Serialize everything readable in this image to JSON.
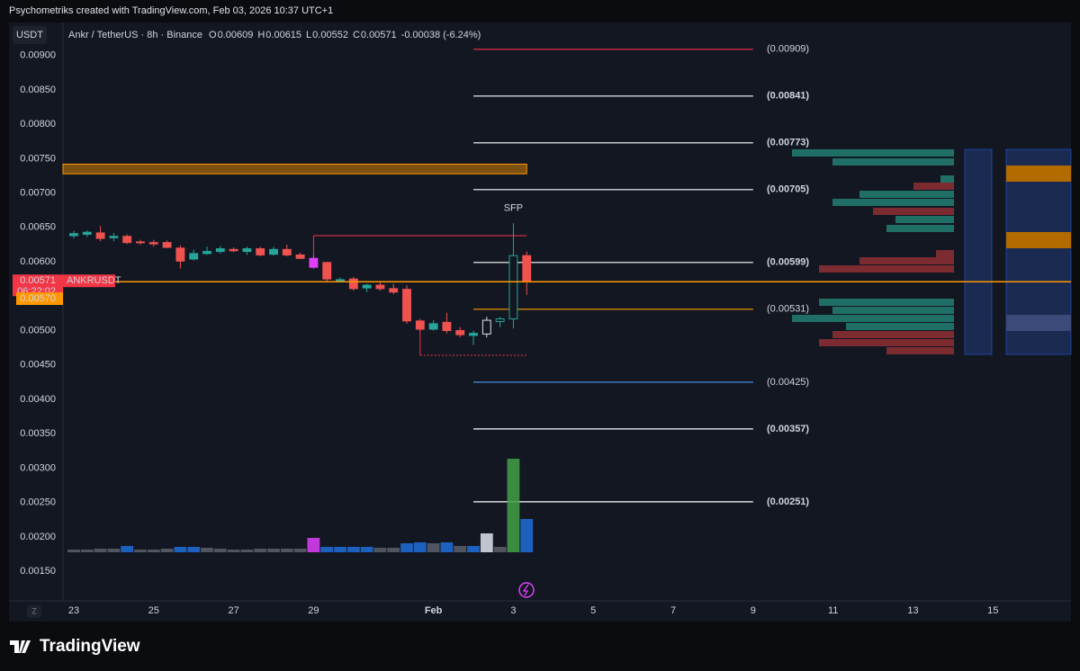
{
  "header": {
    "attribution": "Psychometriks created with TradingView.com, Feb 03, 2026 10:37 UTC+1"
  },
  "footer": {
    "logo": "TradingView"
  },
  "chart_data": {
    "type": "candlestick",
    "quote_button": "USDT",
    "symbol": "Ankr / TetherUS · 8h · Binance",
    "legend": [
      {
        "label": "O",
        "value": "0.00609"
      },
      {
        "label": "H",
        "value": "0.00615"
      },
      {
        "label": "L",
        "value": "0.00552"
      },
      {
        "label": "C",
        "value": "0.00571"
      }
    ],
    "change": "-0.00038 (-6.24%)",
    "x": [
      0,
      1,
      2,
      3,
      4,
      5,
      6,
      7,
      8,
      9,
      10,
      11,
      12,
      13,
      14,
      15,
      16,
      17,
      18,
      19,
      20,
      21,
      22,
      23,
      24,
      25,
      26,
      27,
      28,
      29,
      30,
      31,
      32,
      33,
      34
    ],
    "open": [
      0.00638,
      0.0064,
      0.00642,
      0.00635,
      0.00637,
      0.00629,
      0.00628,
      0.00628,
      0.0062,
      0.00604,
      0.00612,
      0.00615,
      0.00618,
      0.00615,
      0.00619,
      0.00611,
      0.00618,
      0.0061,
      0.00605,
      0.00599,
      0.00574,
      0.00575,
      0.00562,
      0.00566,
      0.00561,
      0.0056,
      0.00514,
      0.00502,
      0.00512,
      0.005,
      0.00493,
      0.00495,
      0.00513,
      0.00517,
      0.00609
    ],
    "high": [
      0.00645,
      0.00646,
      0.00652,
      0.00642,
      0.0064,
      0.00632,
      0.00632,
      0.00631,
      0.00624,
      0.00618,
      0.00622,
      0.00623,
      0.00621,
      0.00622,
      0.00622,
      0.00622,
      0.00625,
      0.00613,
      0.0061,
      0.006,
      0.00577,
      0.00578,
      0.00568,
      0.00571,
      0.00568,
      0.00566,
      0.00517,
      0.00515,
      0.00526,
      0.00505,
      0.005,
      0.0052,
      0.0052,
      0.00656,
      0.00615
    ],
    "low": [
      0.00634,
      0.00636,
      0.0063,
      0.0063,
      0.00626,
      0.00625,
      0.00622,
      0.0062,
      0.0059,
      0.00602,
      0.0061,
      0.00612,
      0.00614,
      0.0061,
      0.00608,
      0.00609,
      0.00608,
      0.00604,
      0.0059,
      0.0057,
      0.0057,
      0.00558,
      0.00556,
      0.00558,
      0.00553,
      0.0051,
      0.00499,
      0.005,
      0.00496,
      0.0049,
      0.00479,
      0.0049,
      0.00505,
      0.00503,
      0.00552
    ],
    "close": [
      0.00641,
      0.00643,
      0.00634,
      0.00637,
      0.00628,
      0.00628,
      0.00626,
      0.00621,
      0.00601,
      0.00612,
      0.00615,
      0.00619,
      0.00616,
      0.00619,
      0.0061,
      0.00618,
      0.0061,
      0.00605,
      0.00592,
      0.00575,
      0.00573,
      0.00561,
      0.00566,
      0.00561,
      0.00556,
      0.00514,
      0.00502,
      0.0051,
      0.005,
      0.00494,
      0.00496,
      0.00515,
      0.00517,
      0.00609,
      0.00571
    ],
    "candle_colors": [
      "#26a69a",
      "#26a69a",
      "#ef5350",
      "#26a69a",
      "#ef5350",
      "#ef5350",
      "#ef5350",
      "#ef5350",
      "#ef5350",
      "#26a69a",
      "#26a69a",
      "#26a69a",
      "#ef5350",
      "#26a69a",
      "#ef5350",
      "#26a69a",
      "#ef5350",
      "#ef5350",
      "#e040fb",
      "#ef5350",
      "#26a69a",
      "#ef5350",
      "#26a69a",
      "#ef5350",
      "#ef5350",
      "#ef5350",
      "#ef5350",
      "#26a69a",
      "#ef5350",
      "#ef5350",
      "#26a69a",
      "#e0e3eb",
      "#26a69a",
      "#26a69a",
      "#ef5350"
    ],
    "volume": [
      3,
      3,
      4,
      4,
      7,
      3,
      3,
      4,
      6,
      6,
      5,
      4,
      3,
      3,
      4,
      4,
      4,
      4,
      16,
      6,
      6,
      6,
      6,
      5,
      5,
      10,
      11,
      10,
      11,
      7,
      7,
      21,
      6,
      104,
      37
    ],
    "volume_colors": [
      "#5d606b",
      "#5d606b",
      "#5d606b",
      "#5d606b",
      "#1e6fd9",
      "#5d606b",
      "#5d606b",
      "#5d606b",
      "#1e6fd9",
      "#1e6fd9",
      "#5d606b",
      "#5d606b",
      "#5d606b",
      "#5d606b",
      "#5d606b",
      "#5d606b",
      "#5d606b",
      "#5d606b",
      "#e040fb",
      "#1e6fd9",
      "#1e6fd9",
      "#1e6fd9",
      "#1e6fd9",
      "#5d606b",
      "#5d606b",
      "#1e6fd9",
      "#1e6fd9",
      "#5d606b",
      "#1e6fd9",
      "#5d606b",
      "#1e6fd9",
      "#e0e3eb",
      "#5d606b",
      "#43a047",
      "#1e6fd9"
    ],
    "volume_ylim": [
      0,
      120
    ],
    "xlim": [
      -0.81,
      74.86
    ],
    "xticks": [
      {
        "value": 0,
        "label": "23"
      },
      {
        "value": 6,
        "label": "25"
      },
      {
        "value": 12,
        "label": "27"
      },
      {
        "value": 18,
        "label": "29"
      },
      {
        "value": 27,
        "label": "Feb"
      },
      {
        "value": 33,
        "label": "3"
      },
      {
        "value": 39,
        "label": "5"
      },
      {
        "value": 45,
        "label": "7"
      },
      {
        "value": 51,
        "label": "9"
      },
      {
        "value": 57,
        "label": "11"
      },
      {
        "value": 63,
        "label": "13"
      },
      {
        "value": 69,
        "label": "15"
      }
    ],
    "ylim": [
      0.00107,
      0.00948
    ],
    "yticks": [
      {
        "value": 0.0015,
        "label": "0.00150"
      },
      {
        "value": 0.002,
        "label": "0.00200"
      },
      {
        "value": 0.0025,
        "label": "0.00250"
      },
      {
        "value": 0.003,
        "label": "0.00300"
      },
      {
        "value": 0.0035,
        "label": "0.00350"
      },
      {
        "value": 0.004,
        "label": "0.00400"
      },
      {
        "value": 0.0045,
        "label": "0.00450"
      },
      {
        "value": 0.005,
        "label": "0.00500"
      },
      {
        "value": 0.0055,
        "label": "0.00550"
      },
      {
        "value": 0.006,
        "label": "0.00600"
      },
      {
        "value": 0.0065,
        "label": "0.00650"
      },
      {
        "value": 0.007,
        "label": "0.00700"
      },
      {
        "value": 0.0075,
        "label": "0.00750"
      },
      {
        "value": 0.008,
        "label": "0.00800"
      },
      {
        "value": 0.0085,
        "label": "0.00850"
      },
      {
        "value": 0.009,
        "label": "0.00900"
      }
    ],
    "levels_x": [
      30,
      51
    ],
    "levels": [
      {
        "value": 0.00909,
        "label": "(0.00909)",
        "color": "#f23645"
      },
      {
        "value": 0.00841,
        "label": "(0.00841)",
        "color": "#ffffff"
      },
      {
        "value": 0.00773,
        "label": "(0.00773)",
        "color": "#ffffff"
      },
      {
        "value": 0.00705,
        "label": "(0.00705)",
        "color": "#ffffff"
      },
      {
        "value": 0.00599,
        "label": "(0.00599)",
        "color": "#ffffff"
      },
      {
        "value": 0.00531,
        "label": "(0.00531)",
        "color": "#ff9800"
      },
      {
        "value": 0.00425,
        "label": "(0.00425)",
        "color": "#4a90e2"
      },
      {
        "value": 0.00357,
        "label": "(0.00357)",
        "color": "#ffffff"
      },
      {
        "value": 0.00251,
        "label": "(0.00251)",
        "color": "#ffffff"
      }
    ],
    "zone": {
      "low": 0.00728,
      "high": 0.00742,
      "x_end": 34,
      "color": "#ff9800"
    },
    "swing_line": {
      "x": [
        18,
        34
      ],
      "y": 0.00638,
      "color": "#f23645"
    },
    "low_line": {
      "x": [
        26,
        34
      ],
      "y": 0.00464,
      "color": "#f23645"
    },
    "annotation": {
      "text": "SFP",
      "x": 33,
      "y": 0.00678,
      "color": "#f23645"
    },
    "price_tag": {
      "symbol": "ANKRUSDT",
      "value": 0.00571,
      "label": "0.00571",
      "countdown": "06:22:02",
      "color": "#f23645"
    },
    "bid_tag": {
      "value": 0.0057,
      "label": "0.00570",
      "color": "#ff9800"
    }
  }
}
